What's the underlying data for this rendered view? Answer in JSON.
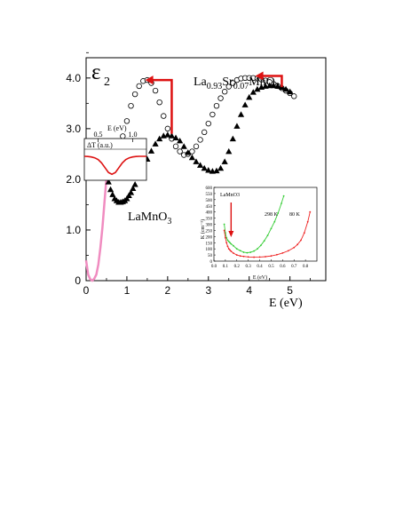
{
  "chart_data": [
    {
      "type": "scatter",
      "title": "",
      "ylabel": "ε2",
      "xlabel": "E  (eV)",
      "xlim": [
        0,
        5.5
      ],
      "ylim": [
        0,
        4.4
      ],
      "x_ticks": [
        "0",
        "1",
        "2",
        "3",
        "4",
        "5"
      ],
      "y_ticks": [
        "0",
        "1.0",
        "2.0",
        "3.0",
        "4.0"
      ],
      "grid": false,
      "annotations": {
        "lsmo_label": {
          "main": "La",
          "s1": "0.93",
          "mid1": "Sr",
          "s2": "0.07",
          "mid2": "MnO",
          "s3": "3"
        },
        "lmo_label": {
          "main": "LaMnO",
          "s1": "3"
        }
      },
      "series": [
        {
          "name": "",
          "marker": "open-circle",
          "x": [
            0.5,
            0.6,
            0.7,
            0.8,
            0.9,
            1.0,
            1.1,
            1.2,
            1.3,
            1.4,
            1.5,
            1.6,
            1.7,
            1.8,
            1.9,
            2.0,
            2.1,
            2.2,
            2.3,
            2.4,
            2.5,
            2.6,
            2.7,
            2.8,
            2.9,
            3.0,
            3.1,
            3.2,
            3.3,
            3.4,
            3.5,
            3.6,
            3.7,
            3.8,
            3.9,
            4.0,
            4.1,
            4.2,
            4.3,
            4.4,
            4.5,
            4.6,
            4.7,
            4.8,
            4.9,
            5.0,
            5.1
          ],
          "y": [
            2.05,
            2.15,
            2.33,
            2.55,
            2.85,
            3.15,
            3.45,
            3.68,
            3.84,
            3.94,
            3.96,
            3.9,
            3.75,
            3.52,
            3.25,
            3.0,
            2.8,
            2.65,
            2.55,
            2.48,
            2.5,
            2.55,
            2.65,
            2.78,
            2.93,
            3.1,
            3.28,
            3.45,
            3.6,
            3.73,
            3.83,
            3.9,
            3.96,
            3.99,
            4.0,
            4.0,
            4.0,
            3.99,
            3.97,
            3.95,
            3.92,
            3.88,
            3.84,
            3.8,
            3.75,
            3.7,
            3.64
          ]
        },
        {
          "name": "",
          "marker": "filled-triangle",
          "x": [
            0.5,
            0.55,
            0.6,
            0.65,
            0.7,
            0.75,
            0.8,
            0.85,
            0.9,
            0.95,
            1.0,
            1.05,
            1.1,
            1.15,
            1.2,
            1.3,
            1.4,
            1.5,
            1.6,
            1.7,
            1.8,
            1.9,
            2.0,
            2.1,
            2.2,
            2.3,
            2.4,
            2.5,
            2.6,
            2.7,
            2.8,
            2.9,
            3.0,
            3.1,
            3.2,
            3.3,
            3.4,
            3.5,
            3.6,
            3.7,
            3.8,
            3.9,
            4.0,
            4.1,
            4.2,
            4.3,
            4.4,
            4.5,
            4.6,
            4.7,
            4.8,
            4.9,
            5.0
          ],
          "y": [
            2.05,
            1.95,
            1.8,
            1.7,
            1.62,
            1.58,
            1.55,
            1.55,
            1.56,
            1.58,
            1.62,
            1.68,
            1.74,
            1.82,
            1.9,
            2.05,
            2.22,
            2.4,
            2.56,
            2.7,
            2.8,
            2.86,
            2.88,
            2.86,
            2.82,
            2.76,
            2.65,
            2.53,
            2.43,
            2.35,
            2.28,
            2.22,
            2.18,
            2.16,
            2.17,
            2.22,
            2.35,
            2.55,
            2.8,
            3.05,
            3.28,
            3.47,
            3.62,
            3.72,
            3.78,
            3.82,
            3.84,
            3.85,
            3.85,
            3.84,
            3.82,
            3.78,
            3.73
          ]
        },
        {
          "name": "",
          "marker": "line-pink",
          "x": [
            0.0,
            0.05,
            0.1,
            0.15,
            0.2,
            0.25,
            0.3,
            0.35,
            0.4,
            0.45,
            0.5
          ],
          "y": [
            0.4,
            0.12,
            0.03,
            0.0,
            0.04,
            0.12,
            0.32,
            0.65,
            1.05,
            1.55,
            2.05
          ]
        }
      ],
      "arrows": [
        {
          "color": "#dd1111",
          "from": [
            2.1,
            2.9
          ],
          "corner": [
            2.1,
            3.96
          ],
          "to": [
            1.45,
            3.96
          ]
        },
        {
          "color": "#dd1111",
          "from": [
            4.8,
            3.82
          ],
          "corner": [
            4.8,
            4.04
          ],
          "to": [
            4.15,
            4.04
          ]
        }
      ]
    },
    {
      "type": "line",
      "title": "",
      "ylabel": "ΔT (a.u.)",
      "xlabel": "E  (eV)",
      "x_ticks": [
        "0.5",
        "1.0"
      ],
      "xlim": [
        0.3,
        1.2
      ],
      "ylim": [
        -1.0,
        0.3
      ],
      "series": [
        {
          "name": "",
          "color": "#dd1111",
          "x": [
            0.3,
            0.35,
            0.4,
            0.45,
            0.5,
            0.55,
            0.6,
            0.65,
            0.7,
            0.75,
            0.8,
            0.85,
            0.9,
            0.95,
            1.0,
            1.05,
            1.1,
            1.15,
            1.2
          ],
          "y": [
            0.0,
            -0.01,
            -0.03,
            -0.07,
            -0.15,
            -0.3,
            -0.52,
            -0.74,
            -0.82,
            -0.74,
            -0.52,
            -0.3,
            -0.15,
            -0.07,
            -0.03,
            -0.01,
            0.0,
            0.0,
            0.0
          ]
        }
      ]
    },
    {
      "type": "scatter",
      "title": "LaMnO3",
      "xlabel": "E (eV)",
      "ylabel": "K (cm⁻¹)",
      "xlim": [
        0.0,
        0.9
      ],
      "ylim": [
        0,
        600
      ],
      "x_ticks": [
        "0.0",
        "0.1",
        "0.2",
        "0.3",
        "0.4",
        "0.5",
        "0.6",
        "0.7",
        "0.8"
      ],
      "y_ticks": [
        "0",
        "50",
        "100",
        "150",
        "200",
        "250",
        "300",
        "350",
        "400",
        "450",
        "500",
        "550",
        "600"
      ],
      "series_labels": [
        "298 K",
        "80 K"
      ],
      "marker_arrow": {
        "color": "#dd1111",
        "x": 0.15
      },
      "series": [
        {
          "name": "298 K",
          "color": "#33cc33",
          "x": [
            0.09,
            0.1,
            0.11,
            0.12,
            0.13,
            0.14,
            0.15,
            0.17,
            0.2,
            0.23,
            0.26,
            0.29,
            0.32,
            0.35,
            0.38,
            0.41,
            0.44,
            0.47,
            0.5,
            0.53,
            0.56,
            0.59,
            0.61
          ],
          "y": [
            300,
            230,
            190,
            170,
            160,
            150,
            140,
            125,
            100,
            85,
            72,
            68,
            72,
            82,
            100,
            128,
            165,
            210,
            265,
            320,
            390,
            470,
            530
          ]
        },
        {
          "name": "80 K",
          "color": "#ee2222",
          "x": [
            0.09,
            0.1,
            0.11,
            0.12,
            0.13,
            0.14,
            0.15,
            0.17,
            0.2,
            0.23,
            0.26,
            0.3,
            0.35,
            0.4,
            0.45,
            0.5,
            0.55,
            0.6,
            0.65,
            0.7,
            0.73,
            0.76,
            0.79,
            0.82,
            0.84
          ],
          "y": [
            250,
            190,
            150,
            120,
            100,
            90,
            80,
            65,
            50,
            42,
            38,
            34,
            32,
            33,
            36,
            42,
            52,
            66,
            84,
            110,
            135,
            170,
            230,
            320,
            400
          ]
        }
      ]
    }
  ]
}
